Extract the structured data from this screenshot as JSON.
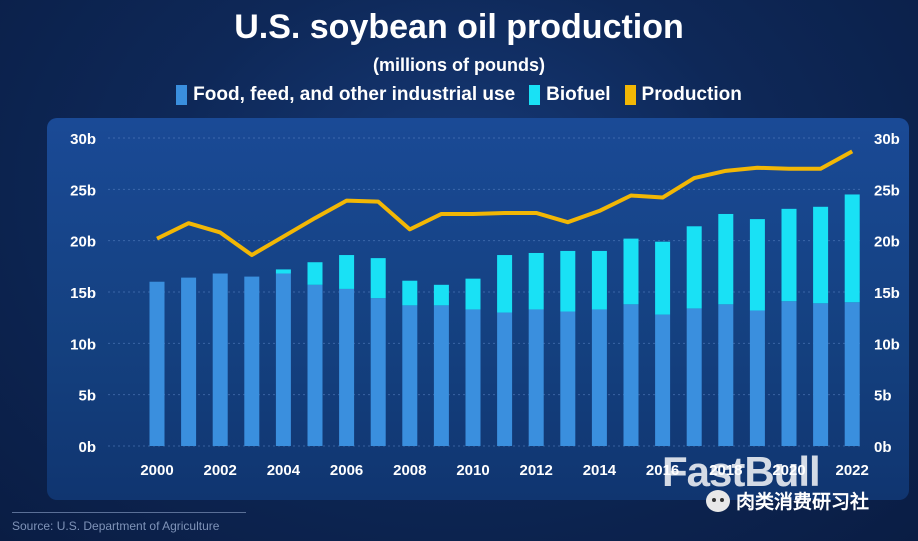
{
  "chart_data": {
    "type": "bar",
    "title": "U.S. soybean oil production",
    "subtitle": "(millions of pounds)",
    "categories": [
      "2000",
      "2001",
      "2002",
      "2003",
      "2004",
      "2005",
      "2006",
      "2007",
      "2008",
      "2009",
      "2010",
      "2011",
      "2012",
      "2013",
      "2014",
      "2015",
      "2016",
      "2017",
      "2018",
      "2019",
      "2020",
      "2021",
      "2022"
    ],
    "x_tick_labels": [
      "2000",
      "2002",
      "2004",
      "2006",
      "2008",
      "2010",
      "2012",
      "2014",
      "2016",
      "2018",
      "2020",
      "2022"
    ],
    "y_tick_labels": [
      "0b",
      "5b",
      "10b",
      "15b",
      "20b",
      "25b",
      "30b"
    ],
    "ylim": [
      0,
      30
    ],
    "stacked": true,
    "series": [
      {
        "name": "Food, feed, and other industrial use",
        "kind": "bar",
        "color": "#3a8fde",
        "values": [
          16.0,
          16.4,
          16.8,
          16.5,
          16.8,
          15.7,
          15.3,
          14.4,
          13.7,
          13.7,
          13.3,
          13.0,
          13.3,
          13.1,
          13.3,
          13.8,
          12.8,
          13.4,
          13.8,
          13.2,
          14.1,
          13.9,
          14.0
        ]
      },
      {
        "name": "Biofuel",
        "kind": "bar",
        "color": "#19e1f5",
        "values": [
          0,
          0,
          0,
          0,
          0.4,
          2.2,
          3.3,
          3.9,
          2.4,
          2.0,
          3.0,
          5.6,
          5.5,
          5.9,
          5.7,
          6.4,
          7.1,
          8.0,
          8.8,
          8.9,
          9.0,
          9.4,
          10.5
        ]
      },
      {
        "name": "Production",
        "kind": "line",
        "color": "#f2b705",
        "values": [
          20.2,
          21.7,
          20.8,
          18.6,
          20.4,
          22.2,
          23.9,
          23.8,
          21.1,
          22.6,
          22.6,
          22.7,
          22.7,
          21.8,
          22.9,
          24.4,
          24.2,
          26.1,
          26.8,
          27.1,
          27.0,
          27.0,
          28.7
        ]
      }
    ],
    "grid": true,
    "legend": "top-center"
  },
  "source": "Source: U.S. Department of Agriculture",
  "watermark": "FastBull",
  "wechat_label": "肉类消费研习社"
}
